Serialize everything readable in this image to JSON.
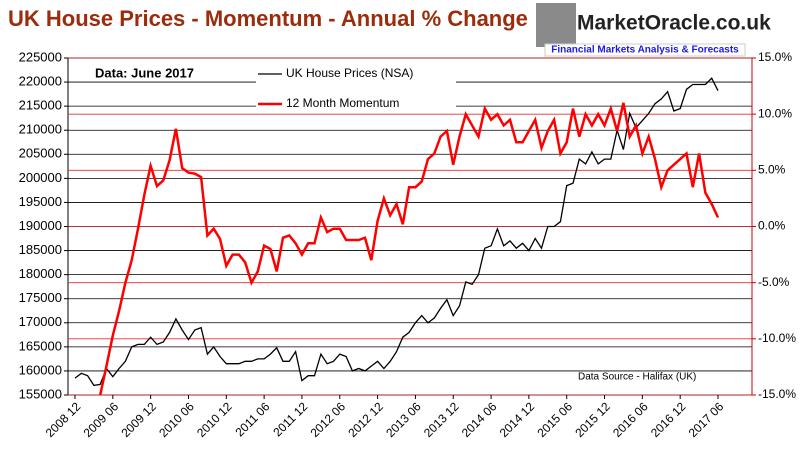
{
  "chart_data": {
    "type": "line",
    "title": "UK House Prices - Momentum - Annual % Change",
    "annotation": "Data:  June 2017",
    "source": "Data Source - Halifax (UK)",
    "logo": {
      "name": "MarketOracle.co.uk",
      "tagline": "Financial Markets Analysis & Forecasts"
    },
    "x": [
      "2008 12",
      "2009 01",
      "2009 02",
      "2009 03",
      "2009 04",
      "2009 05",
      "2009 06",
      "2009 07",
      "2009 08",
      "2009 09",
      "2009 10",
      "2009 11",
      "2009 12",
      "2010 01",
      "2010 02",
      "2010 03",
      "2010 04",
      "2010 05",
      "2010 06",
      "2010 07",
      "2010 08",
      "2010 09",
      "2010 10",
      "2010 11",
      "2010 12",
      "2011 01",
      "2011 02",
      "2011 03",
      "2011 04",
      "2011 05",
      "2011 06",
      "2011 07",
      "2011 08",
      "2011 09",
      "2011 10",
      "2011 11",
      "2011 12",
      "2012 01",
      "2012 02",
      "2012 03",
      "2012 04",
      "2012 05",
      "2012 06",
      "2012 07",
      "2012 08",
      "2012 09",
      "2012 10",
      "2012 11",
      "2012 12",
      "2013 01",
      "2013 02",
      "2013 03",
      "2013 04",
      "2013 05",
      "2013 06",
      "2013 07",
      "2013 08",
      "2013 09",
      "2013 10",
      "2013 11",
      "2013 12",
      "2014 01",
      "2014 02",
      "2014 03",
      "2014 04",
      "2014 05",
      "2014 06",
      "2014 07",
      "2014 08",
      "2014 09",
      "2014 10",
      "2014 11",
      "2014 12",
      "2015 01",
      "2015 02",
      "2015 03",
      "2015 04",
      "2015 05",
      "2015 06",
      "2015 07",
      "2015 08",
      "2015 09",
      "2015 10",
      "2015 11",
      "2015 12",
      "2016 01",
      "2016 02",
      "2016 03",
      "2016 04",
      "2016 05",
      "2016 06",
      "2016 07",
      "2016 08",
      "2016 09",
      "2016 10",
      "2016 11",
      "2016 12",
      "2017 01",
      "2017 02",
      "2017 03",
      "2017 04",
      "2017 05",
      "2017 06"
    ],
    "series": [
      {
        "name": "UK House Prices (NSA)",
        "color": "#000000",
        "values": [
          158500,
          159500,
          159000,
          157000,
          157200,
          160500,
          158800,
          160500,
          162000,
          165000,
          165500,
          165500,
          167000,
          165500,
          166000,
          168000,
          170800,
          168500,
          166500,
          168500,
          169000,
          163500,
          165000,
          163000,
          161500,
          161500,
          161500,
          162000,
          162000,
          162500,
          162500,
          163500,
          164800,
          162000,
          162000,
          164000,
          158000,
          159000,
          159000,
          163500,
          161500,
          162000,
          163500,
          163000,
          160000,
          160500,
          160000,
          161000,
          162000,
          160500,
          162000,
          164000,
          167000,
          168000,
          170000,
          171500,
          170000,
          171000,
          173000,
          174800,
          171500,
          173500,
          178500,
          178000,
          180000,
          185500,
          186000,
          189500,
          186000,
          187000,
          185500,
          186500,
          185000,
          187500,
          185500,
          190000,
          190000,
          191000,
          198500,
          199000,
          204000,
          203000,
          205500,
          203000,
          204000,
          204000,
          210000,
          206000,
          213500,
          210500,
          212000,
          213500,
          215500,
          216500,
          218000,
          214000,
          214500,
          218500,
          219500,
          219500,
          219500,
          220800,
          218200
        ]
      },
      {
        "name": "12 Month Momentum",
        "color": "#ff0000",
        "axis": "y2",
        "values": [
          null,
          null,
          null,
          null,
          -15,
          -12.4,
          -9.7,
          -7.5,
          -5,
          -3,
          -0.2,
          2.8,
          5.4,
          3.6,
          4.1,
          5.9,
          8.7,
          5.2,
          4.8,
          4.7,
          4.4,
          -0.8,
          -0.2,
          -1.1,
          -3.5,
          -2.5,
          -2.5,
          -3.2,
          -5,
          -4,
          -1.7,
          -2,
          -4,
          -1,
          -0.8,
          -1.5,
          -2.5,
          -1.5,
          -1.5,
          0.8,
          -0.5,
          -0.2,
          -0.2,
          -1.2,
          -1.2,
          -1.2,
          -1,
          -3,
          0.5,
          2.5,
          1,
          2,
          0.2,
          3.5,
          3.5,
          4,
          6,
          6.5,
          8,
          8.5,
          5.5,
          8,
          10,
          9,
          8,
          10.5,
          9.5,
          10,
          9,
          9.5,
          7.5,
          7.5,
          8.5,
          9.5,
          7,
          8.5,
          9.5,
          6.5,
          7.5,
          10.5,
          8,
          10,
          9,
          10,
          9,
          10.5,
          8.5,
          11,
          8,
          9,
          6.5,
          8,
          6,
          3.5,
          5,
          5.5,
          6,
          6.5,
          3.5,
          6.5,
          3,
          2,
          0.8
        ]
      }
    ],
    "ylim": [
      155000,
      225000
    ],
    "yticks": [
      155000,
      160000,
      165000,
      170000,
      175000,
      180000,
      185000,
      190000,
      195000,
      200000,
      205000,
      210000,
      215000,
      220000,
      225000
    ],
    "y2lim": [
      -15,
      15
    ],
    "y2ticks": [
      {
        "value": -15,
        "label": "-15.0%"
      },
      {
        "value": -10,
        "label": "-10.0%"
      },
      {
        "value": -5,
        "label": "-5.0%"
      },
      {
        "value": 0,
        "label": "0.0%"
      },
      {
        "value": 5,
        "label": "5.0%"
      },
      {
        "value": 10,
        "label": "10.0%"
      },
      {
        "value": 15,
        "label": "15.0%"
      }
    ],
    "grid": true
  }
}
